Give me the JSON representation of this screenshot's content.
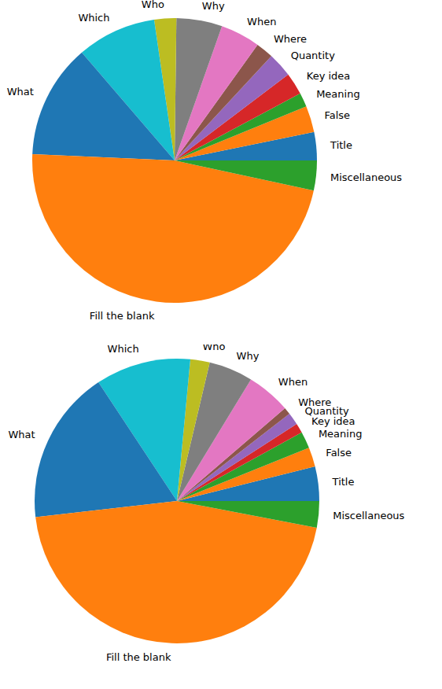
{
  "chart_data": [
    {
      "type": "pie",
      "categories": [
        "Title",
        "False",
        "Meaning",
        "Key idea",
        "Quantity",
        "Where",
        "When",
        "Why",
        "Who",
        "Which",
        "What",
        "Fill the blank",
        "Miscellaneous"
      ],
      "values": [
        3.2,
        3.0,
        1.6,
        2.5,
        2.8,
        2.0,
        4.5,
        5.2,
        2.5,
        9.0,
        13.0,
        47.3,
        3.4
      ],
      "colors": [
        "#1f77b4",
        "#ff7f0e",
        "#2ca02c",
        "#d62728",
        "#9467bd",
        "#8c564b",
        "#e377c2",
        "#7f7f7f",
        "#bcbd22",
        "#17becf",
        "#1f77b4",
        "#ff7f0e",
        "#2ca02c"
      ]
    },
    {
      "type": "pie",
      "categories": [
        "Title",
        "False",
        "Meaning",
        "Key idea",
        "Quantity",
        "Where",
        "When",
        "Why",
        "Who",
        "Which",
        "What",
        "Fill the blank",
        "Miscellaneous"
      ],
      "values": [
        3.9,
        2.2,
        1.9,
        1.1,
        1.4,
        0.8,
        5.0,
        5.0,
        2.2,
        10.8,
        17.5,
        45.2,
        3.0
      ],
      "colors": [
        "#1f77b4",
        "#ff7f0e",
        "#2ca02c",
        "#d62728",
        "#9467bd",
        "#8c564b",
        "#e377c2",
        "#7f7f7f",
        "#bcbd22",
        "#17becf",
        "#1f77b4",
        "#ff7f0e",
        "#2ca02c"
      ]
    }
  ]
}
